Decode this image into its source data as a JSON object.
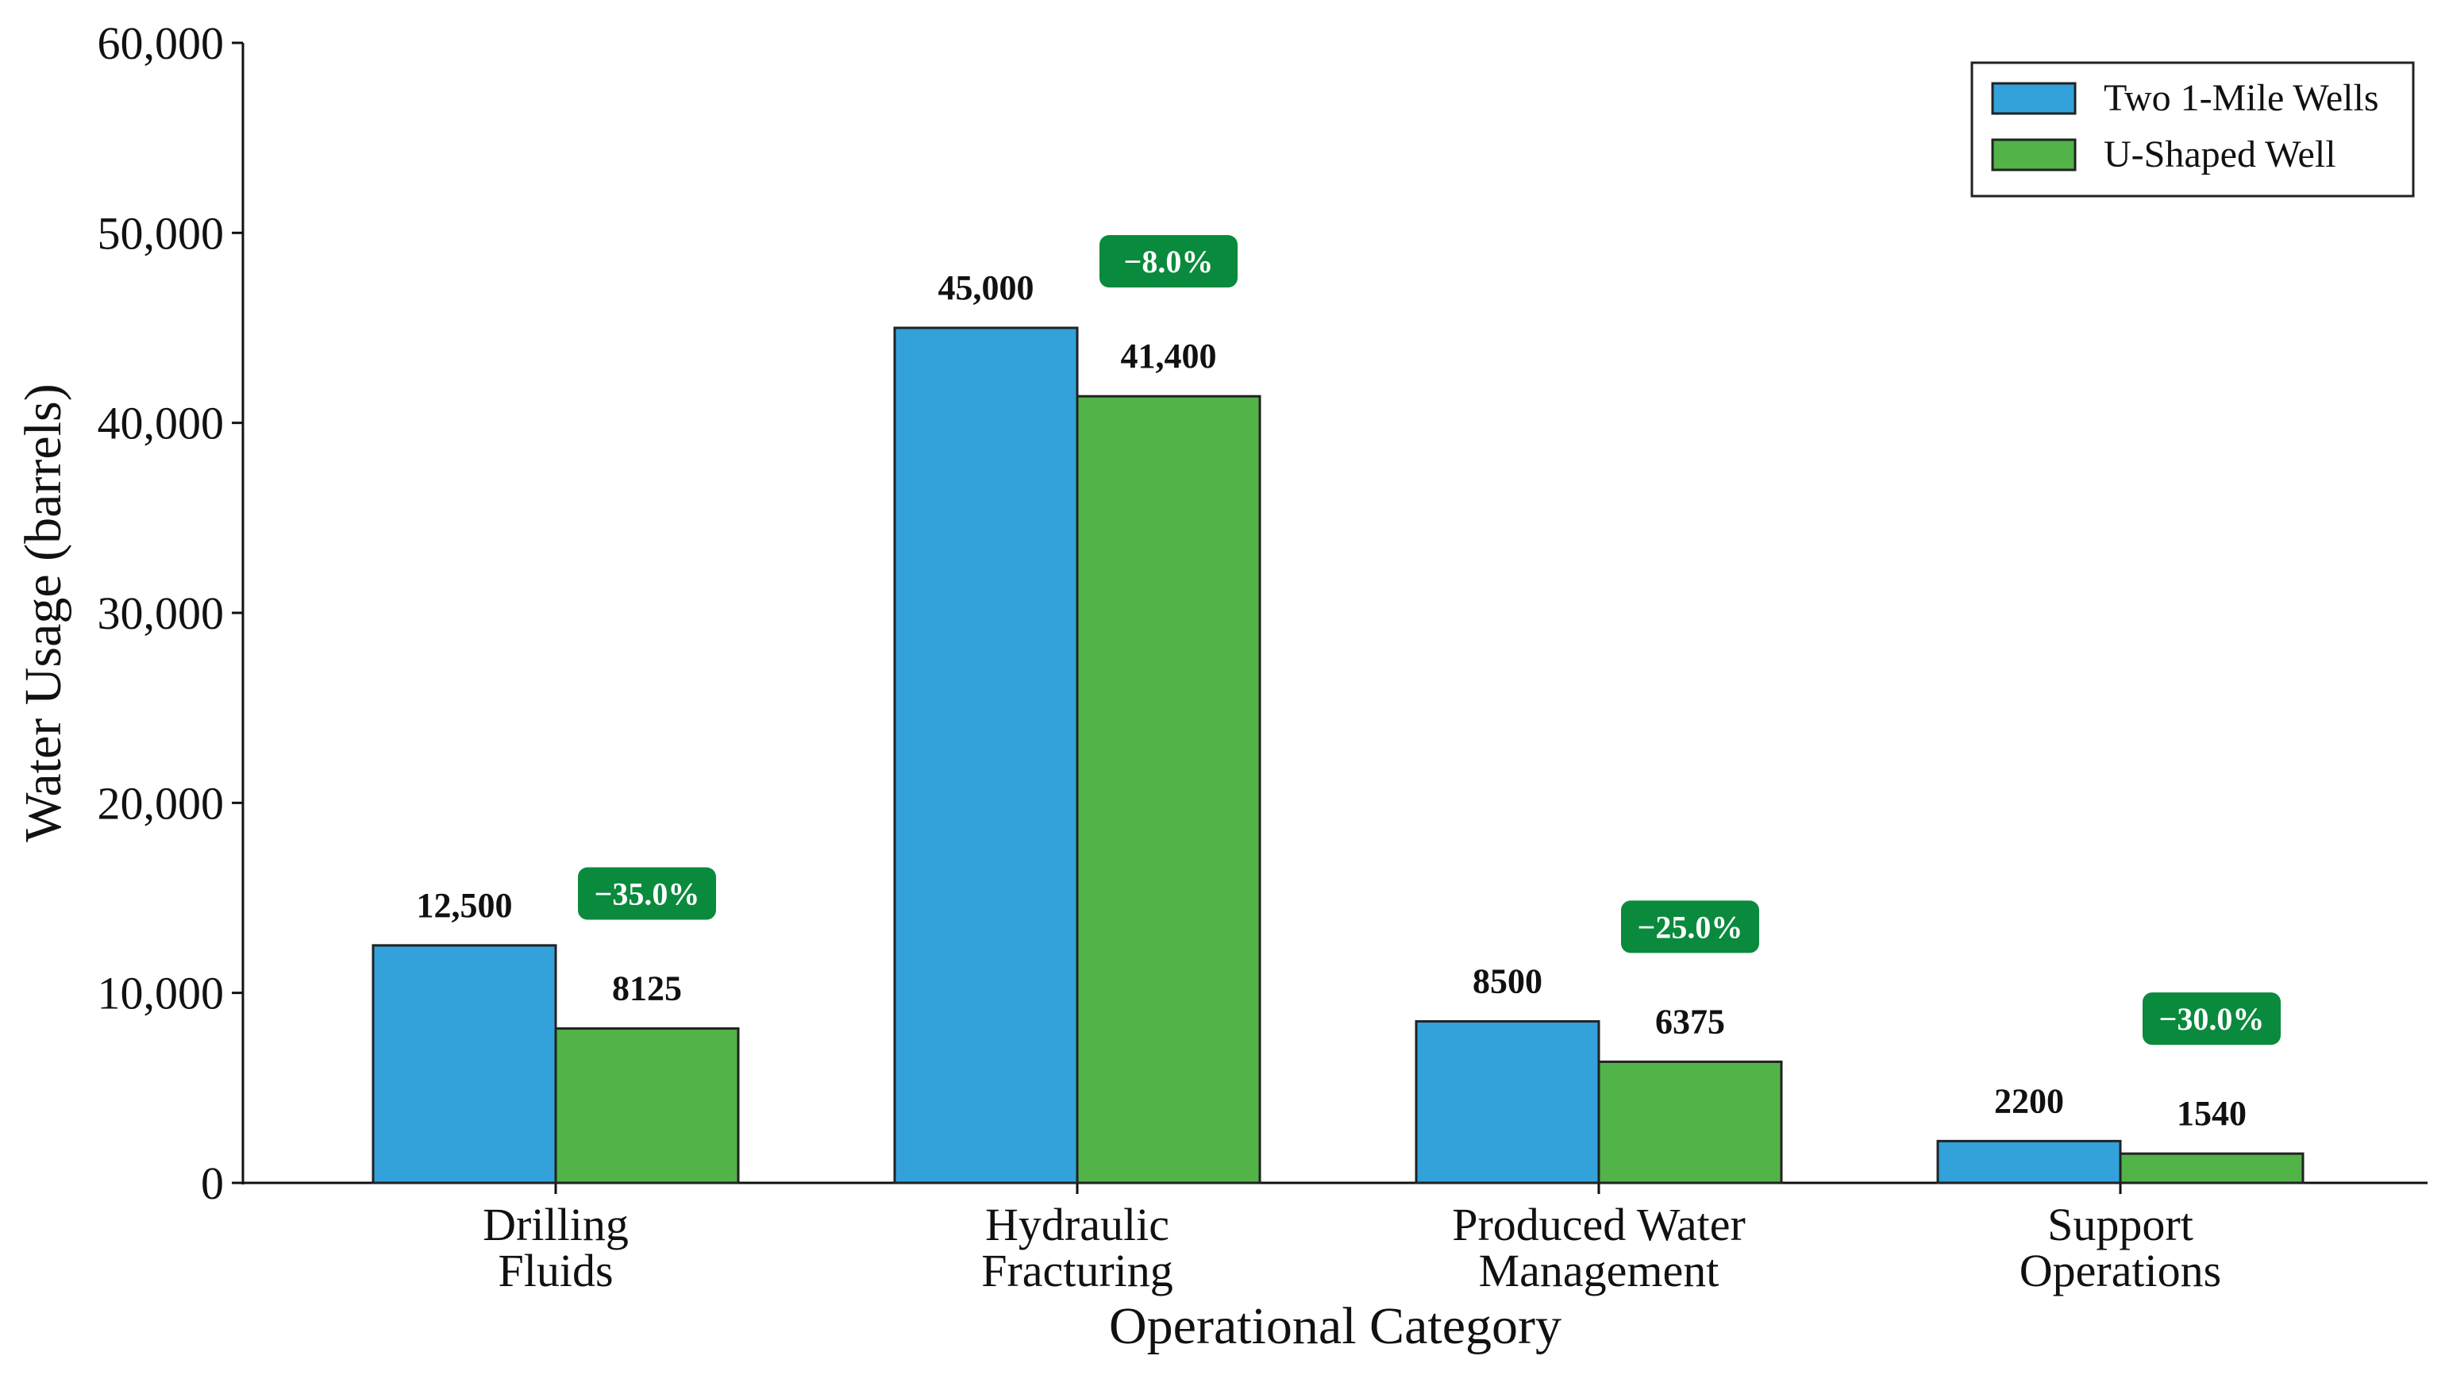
{
  "chart_data": {
    "type": "bar",
    "title": "",
    "xlabel": "Operational Category",
    "ylabel": "Water Usage (barrels)",
    "ylim": [
      0,
      60000
    ],
    "yticks": [
      0,
      10000,
      20000,
      30000,
      40000,
      50000,
      60000
    ],
    "ytick_labels": [
      "0",
      "10,000",
      "20,000",
      "30,000",
      "40,000",
      "50,000",
      "60,000"
    ],
    "categories": [
      [
        "Drilling",
        "Fluids"
      ],
      [
        "Hydraulic",
        "Fracturing"
      ],
      [
        "Produced Water",
        "Management"
      ],
      [
        "Support",
        "Operations"
      ]
    ],
    "series": [
      {
        "name": "Two 1-Mile Wells",
        "color": "#33a2da",
        "values": [
          12500,
          45000,
          8500,
          2200
        ],
        "labels": [
          "12,500",
          "45,000",
          "8500",
          "2200"
        ]
      },
      {
        "name": "U-Shaped Well",
        "color": "#52b348",
        "values": [
          8125,
          41400,
          6375,
          1540
        ],
        "labels": [
          "8125",
          "41,400",
          "6375",
          "1540"
        ]
      }
    ],
    "reductions": [
      "−35.0%",
      "−8.0%",
      "−25.0%",
      "−30.0%"
    ],
    "badge_color": "#0a8a3c",
    "legend_position": "top-right",
    "grid": false
  }
}
